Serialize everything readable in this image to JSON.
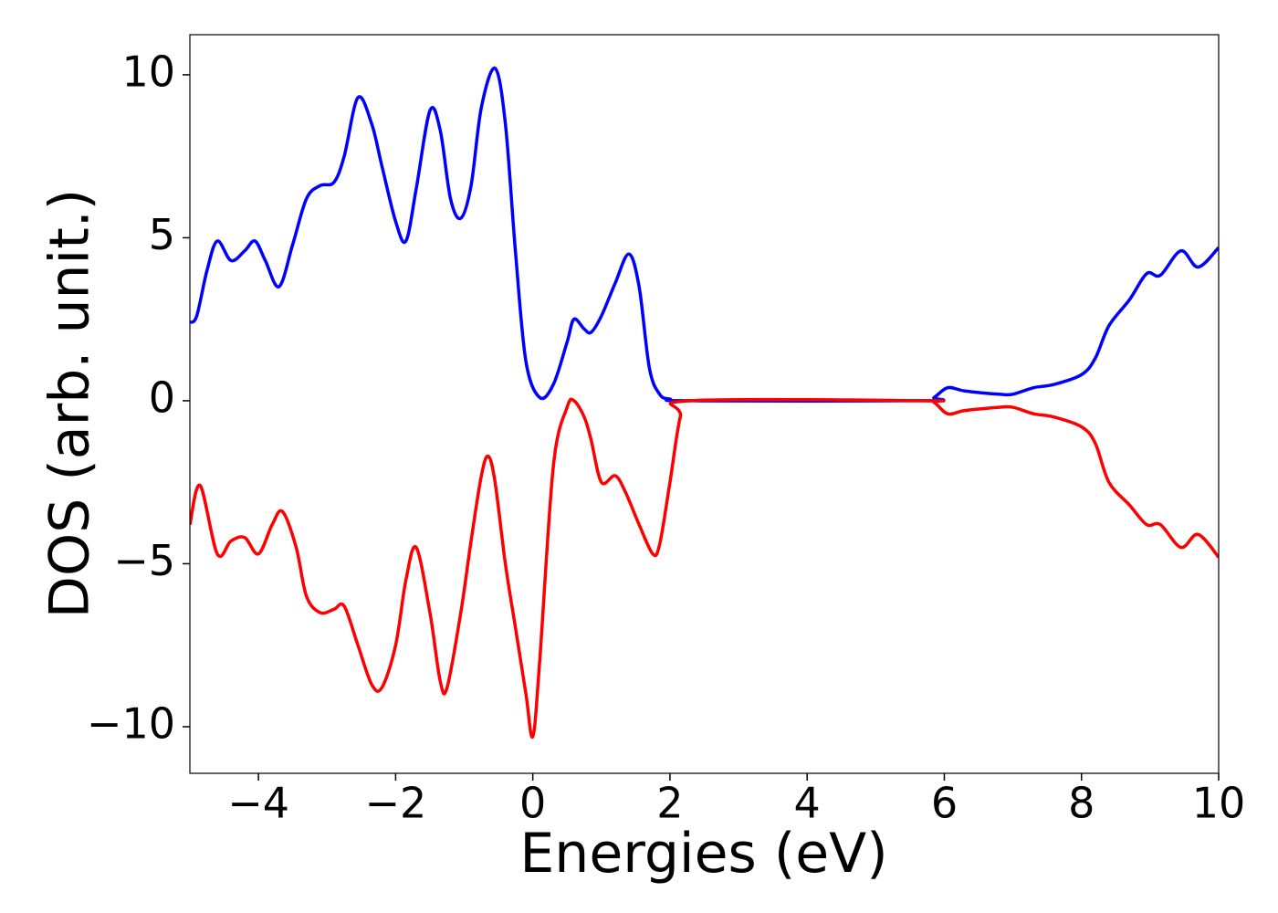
{
  "chart_data": {
    "type": "line",
    "xlabel": "Energies (eV)",
    "ylabel": "DOS (arb. unit.)",
    "xlim": [
      -5,
      10
    ],
    "ylim": [
      -11.43,
      11.23
    ],
    "xticks": [
      {
        "value": -4,
        "label": "−4"
      },
      {
        "value": -2,
        "label": "−2"
      },
      0,
      2,
      4,
      6,
      8,
      10
    ],
    "yticks": [
      {
        "value": -10,
        "label": "−10"
      },
      {
        "value": -5,
        "label": "−5"
      },
      0,
      5,
      10
    ],
    "series": [
      {
        "color": "#0000ff",
        "x": [
          -5,
          -4.9,
          -4.75,
          -4.6,
          -4.4,
          -4.2,
          -4.05,
          -3.9,
          -3.7,
          -3.5,
          -3.3,
          -3.1,
          -2.9,
          -2.75,
          -2.55,
          -2.35,
          -2.2,
          -2.0,
          -1.85,
          -1.7,
          -1.5,
          -1.35,
          -1.2,
          -1.05,
          -0.9,
          -0.75,
          -0.55,
          -0.4,
          -0.25,
          -0.1,
          0.1,
          0.3,
          0.5,
          0.6,
          0.75,
          0.85,
          1.0,
          1.2,
          1.4,
          1.55,
          1.7,
          1.85,
          2.0,
          2.3,
          5.7,
          5.85,
          6.05,
          6.3,
          6.8,
          7.0,
          7.3,
          7.6,
          8.0,
          8.2,
          8.4,
          8.7,
          8.95,
          9.15,
          9.45,
          9.7,
          10
        ],
        "values": [
          2.4,
          2.6,
          4.0,
          4.9,
          4.3,
          4.6,
          4.9,
          4.3,
          3.5,
          4.8,
          6.2,
          6.6,
          6.7,
          7.5,
          9.3,
          8.5,
          7.2,
          5.5,
          4.9,
          6.5,
          8.9,
          8.3,
          6.2,
          5.6,
          6.6,
          9.0,
          10.2,
          8.5,
          4.5,
          1.2,
          0.1,
          0.5,
          1.8,
          2.5,
          2.2,
          2.1,
          2.6,
          3.6,
          4.5,
          3.5,
          1.0,
          0.2,
          0.05,
          0,
          0,
          0.1,
          0.4,
          0.3,
          0.2,
          0.2,
          0.4,
          0.5,
          0.8,
          1.3,
          2.3,
          3.1,
          3.9,
          3.85,
          4.6,
          4.1,
          4.7
        ]
      },
      {
        "color": "#ff0000",
        "x": [
          -5,
          -4.85,
          -4.6,
          -4.4,
          -4.2,
          -4.0,
          -3.8,
          -3.65,
          -3.45,
          -3.3,
          -3.1,
          -2.9,
          -2.75,
          -2.55,
          -2.35,
          -2.2,
          -2.0,
          -1.85,
          -1.7,
          -1.5,
          -1.35,
          -1.25,
          -1.05,
          -0.9,
          -0.75,
          -0.65,
          -0.55,
          -0.4,
          -0.25,
          -0.1,
          0.0,
          0.1,
          0.3,
          0.5,
          0.6,
          0.75,
          0.85,
          1.0,
          1.2,
          1.35,
          1.55,
          1.75,
          1.85,
          2.0,
          2.15,
          2.3,
          5.7,
          5.85,
          6.05,
          6.3,
          6.8,
          7.0,
          7.3,
          7.6,
          8.0,
          8.2,
          8.4,
          8.7,
          8.95,
          9.15,
          9.45,
          9.7,
          10
        ],
        "values": [
          -3.8,
          -2.6,
          -4.7,
          -4.3,
          -4.2,
          -4.7,
          -3.8,
          -3.4,
          -4.5,
          -6.0,
          -6.5,
          -6.4,
          -6.3,
          -7.5,
          -8.7,
          -8.8,
          -7.5,
          -5.5,
          -4.5,
          -6.5,
          -8.6,
          -8.8,
          -6.5,
          -4.3,
          -2.3,
          -1.7,
          -2.5,
          -5.0,
          -7.0,
          -9.0,
          -10.3,
          -8.0,
          -2.0,
          -0.2,
          0.0,
          -0.5,
          -1.2,
          -2.5,
          -2.3,
          -2.8,
          -3.8,
          -4.7,
          -4.4,
          -2.5,
          -0.5,
          0,
          0,
          -0.05,
          -0.4,
          -0.3,
          -0.2,
          -0.2,
          -0.4,
          -0.5,
          -0.8,
          -1.3,
          -2.5,
          -3.2,
          -3.8,
          -3.8,
          -4.5,
          -4.1,
          -4.8
        ]
      }
    ]
  }
}
